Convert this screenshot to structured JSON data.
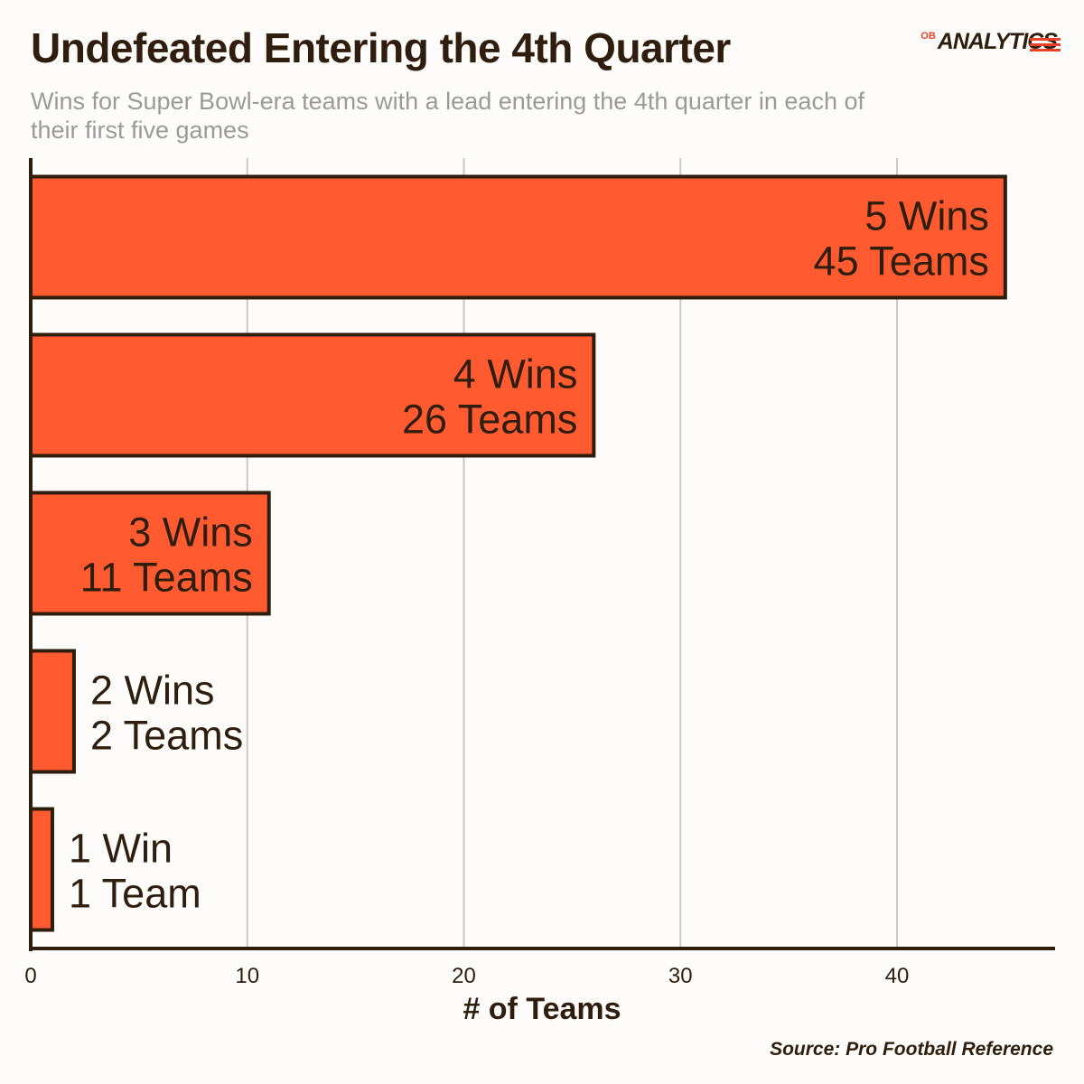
{
  "title": "Undefeated Entering the 4th Quarter",
  "subtitle": "Wins for Super Bowl-era teams with a lead entering the 4th quarter in each of their first five games",
  "logo": {
    "prefix": "OB",
    "text": "ANALYTICS"
  },
  "source": "Source: Pro Football Reference",
  "colors": {
    "bar": "#ff5a30",
    "outline": "#2f1e0e",
    "grid": "#c8c8c8",
    "accent": "#e8432a"
  },
  "chart_data": {
    "type": "bar",
    "orientation": "horizontal",
    "categories": [
      "5 Wins",
      "4 Wins",
      "3 Wins",
      "2 Wins",
      "1 Win"
    ],
    "values": [
      45,
      26,
      11,
      2,
      1
    ],
    "bar_labels": [
      [
        "5 Wins",
        "45 Teams"
      ],
      [
        "4 Wins",
        "26 Teams"
      ],
      [
        "3 Wins",
        "11 Teams"
      ],
      [
        "2 Wins",
        "2 Teams"
      ],
      [
        "1 Win",
        "1 Team"
      ]
    ],
    "xlabel": "# of Teams",
    "ylabel": "",
    "xlim": [
      0,
      47.3
    ],
    "xticks": [
      0,
      10,
      20,
      30,
      40
    ],
    "grid": true
  }
}
